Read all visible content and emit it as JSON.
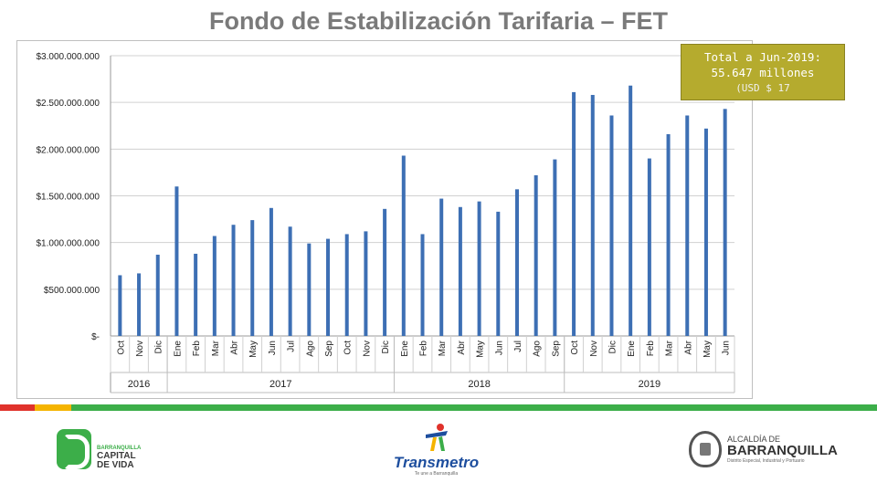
{
  "title": "Fondo de Estabilización Tarifaria – FET",
  "callout": {
    "line1": "Total a Jun-2019:",
    "line2": "55.647 millones",
    "line3": "(USD $ 17"
  },
  "chart_data": {
    "type": "bar",
    "color": "#3d6fb4",
    "ylim": [
      0,
      3000000000
    ],
    "yticks": [
      {
        "value": 0,
        "label": "$-"
      },
      {
        "value": 500000000,
        "label": "$500.000.000"
      },
      {
        "value": 1000000000,
        "label": "$1.000.000.000"
      },
      {
        "value": 1500000000,
        "label": "$1.500.000.000"
      },
      {
        "value": 2000000000,
        "label": "$2.000.000.000"
      },
      {
        "value": 2500000000,
        "label": "$2.500.000.000"
      },
      {
        "value": 3000000000,
        "label": "$3.000.000.000"
      }
    ],
    "categories": [
      "Oct",
      "Nov",
      "Dic",
      "Ene",
      "Feb",
      "Mar",
      "Abr",
      "May",
      "Jun",
      "Jul",
      "Ago",
      "Sep",
      "Oct",
      "Nov",
      "Dic",
      "Ene",
      "Feb",
      "Mar",
      "Abr",
      "May",
      "Jun",
      "Jul",
      "Ago",
      "Sep",
      "Oct",
      "Nov",
      "Dic",
      "Ene",
      "Feb",
      "Mar",
      "Abr",
      "May",
      "Jun"
    ],
    "values": [
      650000000,
      670000000,
      870000000,
      1600000000,
      880000000,
      1070000000,
      1190000000,
      1240000000,
      1370000000,
      1170000000,
      990000000,
      1040000000,
      1090000000,
      1120000000,
      1360000000,
      1930000000,
      1090000000,
      1470000000,
      1380000000,
      1440000000,
      1330000000,
      1570000000,
      1720000000,
      1890000000,
      2610000000,
      2580000000,
      2360000000,
      2680000000,
      1900000000,
      2160000000,
      2360000000,
      2220000000,
      2430000000
    ],
    "groups": [
      {
        "label": "2016",
        "count": 3
      },
      {
        "label": "2017",
        "count": 12
      },
      {
        "label": "2018",
        "count": 9
      },
      {
        "label": "2019",
        "count": 9
      }
    ],
    "grid": true
  },
  "stripe_colors": [
    "#e0322b",
    "#f5b400",
    "#3cae49"
  ],
  "logos": {
    "left_small": "BARRANQUILLA",
    "left_main_1": "CAPITAL",
    "left_main_2": "DE VIDA",
    "mid_name": "Transmetro",
    "mid_tag": "Te une a Barranquilla",
    "right_small": "ALCALDÍA DE",
    "right_main": "BARRANQUILLA",
    "right_tag": "Distrito Especial, Industrial y Portuario"
  }
}
